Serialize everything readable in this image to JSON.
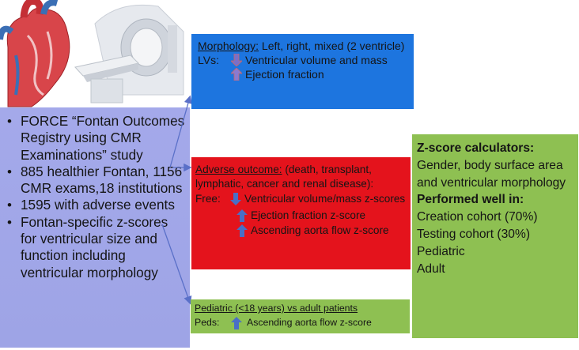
{
  "left_panel": {
    "bullets": [
      "FORCE “Fontan Outcomes Registry using CMR Examinations” study",
      "885 healthier Fontan, 1156 CMR exams,18 institutions",
      "1595 with adverse events",
      "Fontan-specific z-scores for ventricular size and function including ventricular morphology"
    ]
  },
  "morphology_box": {
    "label": "Morphology:",
    "text": " Left, right, mixed (2 ventricle)",
    "lvs_label": "LVs:",
    "down_item": "Ventricular volume and mass",
    "up_item": "Ejection fraction"
  },
  "adverse_box": {
    "label": "Adverse outcome:",
    "text": " (death, transplant, lymphatic, cancer and renal disease):",
    "free_label": "Free:",
    "down_item": "Ventricular volume/mass z-scores",
    "up_item_1": "Ejection fraction z-score",
    "up_item_2": "Ascending aorta flow z-score"
  },
  "peds_box": {
    "title": "Pediatric (<18 years) vs adult patients",
    "peds_label": "Peds:",
    "up_item": "Ascending aorta flow z-score"
  },
  "calc_box": {
    "heading": "Z-score calculators:",
    "text": "Gender, body surface area and ventricular morphology",
    "heading2": "Performed well in:",
    "items": [
      "Creation cohort (70%)",
      "Testing cohort (30%)",
      "Pediatric",
      "Adult"
    ]
  },
  "colors": {
    "left_panel": "#a4a9ea",
    "blue_box": "#1d75df",
    "red_box": "#e4131c",
    "green_box": "#8ec052",
    "arrow_down": "#7a6fc8",
    "arrow_up": "#8a7ad0",
    "arrow_blue": "#4a6fc6",
    "connector": "#5a70c8"
  },
  "icons": [
    "heart-illustration",
    "mri-scanner-illustration",
    "arrow-down-icon",
    "arrow-up-icon"
  ]
}
